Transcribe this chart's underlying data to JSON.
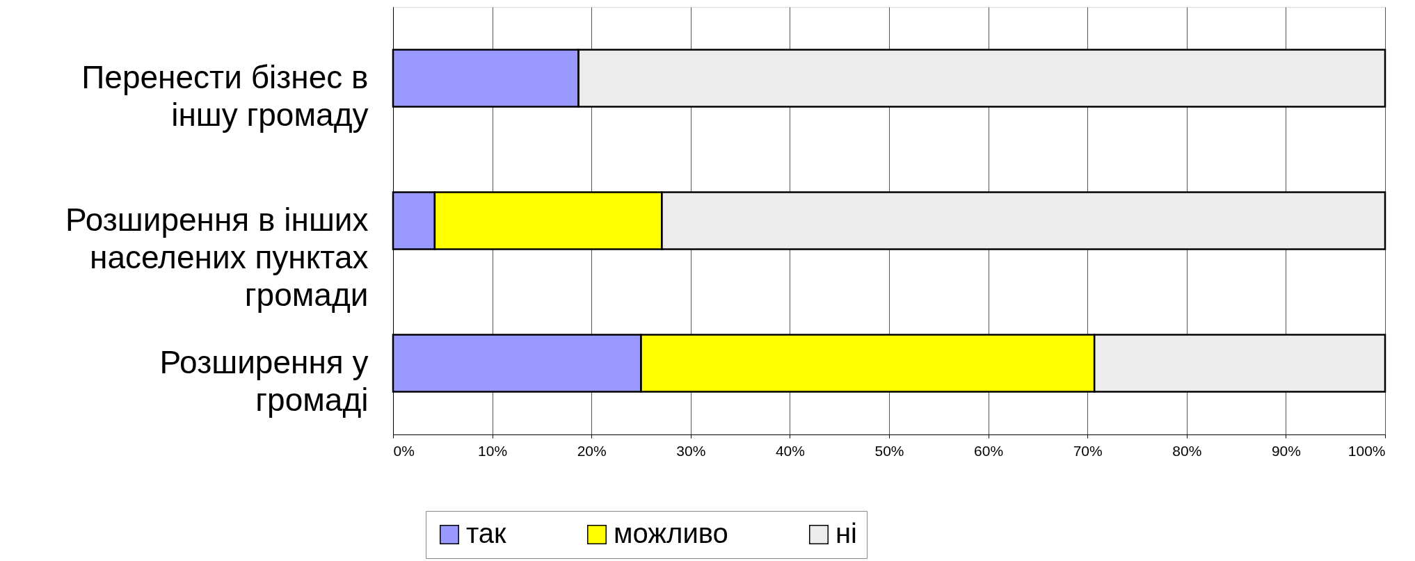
{
  "chart_data": {
    "type": "bar",
    "orientation": "horizontal",
    "stacked": true,
    "categories": [
      "Перенести бізнес в іншу громаду",
      "Розширення в інших населених пунктах громади",
      "Розширення у громаді"
    ],
    "series": [
      {
        "name": "так",
        "color": "#9999ff",
        "values": [
          18.7,
          4.2,
          25.0
        ]
      },
      {
        "name": "можливо",
        "color": "#ffff00",
        "values": [
          0,
          22.9,
          45.7
        ]
      },
      {
        "name": "ні",
        "color": "#ececec",
        "values": [
          81.3,
          72.9,
          29.3
        ]
      }
    ],
    "xlim": [
      0,
      100
    ],
    "xticks": [
      {
        "value": 0,
        "label": "0%"
      },
      {
        "value": 10,
        "label": "10%"
      },
      {
        "value": 20,
        "label": "20%"
      },
      {
        "value": 30,
        "label": "30%"
      },
      {
        "value": 40,
        "label": "40%"
      },
      {
        "value": 50,
        "label": "50%"
      },
      {
        "value": 60,
        "label": "60%"
      },
      {
        "value": 70,
        "label": "70%"
      },
      {
        "value": 80,
        "label": "80%"
      },
      {
        "value": 90,
        "label": "90%"
      },
      {
        "value": 100,
        "label": "100%"
      }
    ],
    "grid": "x",
    "legend": "bottom"
  }
}
